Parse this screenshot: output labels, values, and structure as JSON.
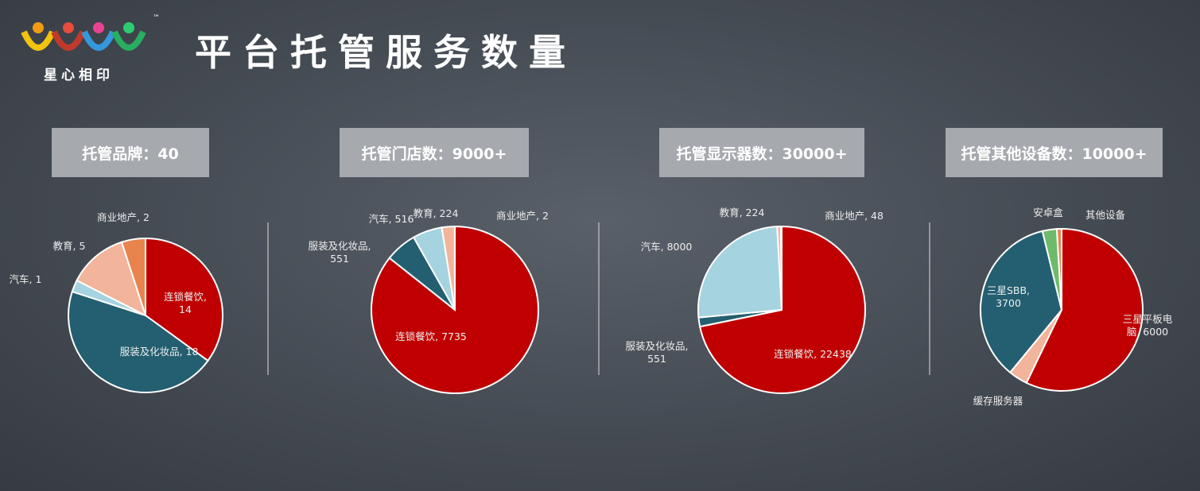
{
  "header": {
    "logo_text": "星心相印",
    "trademark": "™",
    "title": "平台托管服务数量"
  },
  "chart_data": [
    {
      "type": "pie",
      "title": "托管品牌：40",
      "values": [
        14,
        18,
        1,
        5,
        2
      ],
      "value_labels": [
        "连锁餐饮,\n14",
        "服装及化妆品, 18",
        "汽车, 1",
        "教育, 5",
        "商业地产, 2"
      ],
      "colors": [
        "#c00000",
        "#235f70",
        "#a5d3df",
        "#f2b49a",
        "#e8834e"
      ]
    },
    {
      "type": "pie",
      "title": "托管门店数：9000+",
      "values": [
        7735,
        551,
        516,
        224,
        2
      ],
      "value_labels": [
        "连锁餐饮, 7735",
        "服装及化妆品,\n551",
        "汽车, 516",
        "教育, 224",
        "商业地产, 2"
      ],
      "colors": [
        "#c00000",
        "#235f70",
        "#a5d3df",
        "#f2b49a",
        "#e8834e"
      ]
    },
    {
      "type": "pie",
      "title": "托管显示器数：30000+",
      "values": [
        22438,
        551,
        8000,
        224,
        48
      ],
      "value_labels": [
        "连锁餐饮, 22438",
        "服装及化妆品,\n551",
        "汽车, 8000",
        "教育, 224",
        "商业地产, 48"
      ],
      "colors": [
        "#c00000",
        "#235f70",
        "#a5d3df",
        "#f2b49a",
        "#e8834e"
      ]
    },
    {
      "type": "pie",
      "title": "托管其他设备数：10000+",
      "values": [
        6000,
        400,
        3700,
        300,
        100
      ],
      "value_labels": [
        "三星平板电脑, 6000",
        "缓存服务器",
        "三星SBB,\n3700",
        "安卓盒",
        "其他设备"
      ],
      "colors": [
        "#c00000",
        "#f2b49a",
        "#235f70",
        "#6dbb6a",
        "#e8834e"
      ]
    }
  ]
}
